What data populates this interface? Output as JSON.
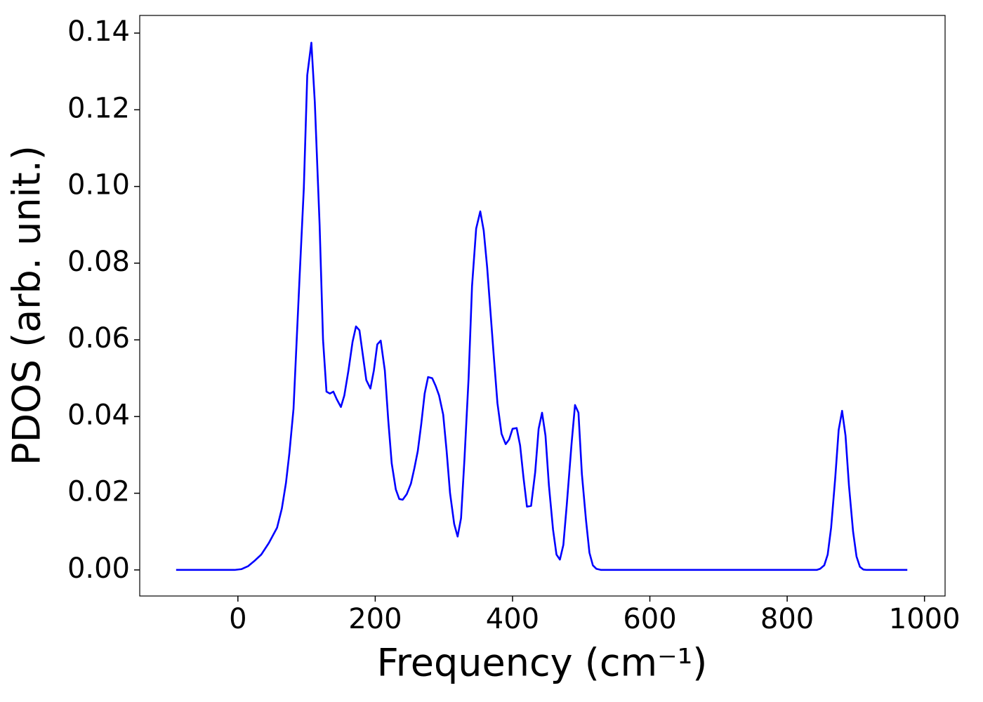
{
  "chart_data": {
    "type": "line",
    "xlabel": "Frequency (cm⁻¹)",
    "ylabel": "PDOS (arb. unit.)",
    "xlim": [
      -143,
      1030
    ],
    "ylim": [
      -0.0068,
      0.1446
    ],
    "xticks": [
      0,
      200,
      400,
      600,
      800,
      1000
    ],
    "yticks": [
      {
        "value": 0,
        "label": "0.00"
      },
      {
        "value": 0.02,
        "label": "0.02"
      },
      {
        "value": 0.04,
        "label": "0.04"
      },
      {
        "value": 0.06,
        "label": "0.06"
      },
      {
        "value": 0.08,
        "label": "0.08"
      },
      {
        "value": 0.1,
        "label": "0.10"
      },
      {
        "value": 0.12,
        "label": "0.12"
      },
      {
        "value": 0.14,
        "label": "0.14"
      }
    ],
    "grid": false,
    "x": [
      -90,
      -20,
      -5,
      5,
      15,
      25,
      34,
      45,
      57,
      64,
      70,
      75,
      81,
      85,
      90,
      96,
      101,
      107,
      112,
      119,
      124,
      129,
      134,
      139,
      144,
      150,
      155,
      161,
      167,
      172,
      177,
      182,
      187,
      193,
      198,
      203,
      208,
      214,
      219,
      224,
      230,
      235,
      240,
      246,
      252,
      257,
      262,
      267,
      272,
      277,
      283,
      288,
      293,
      299,
      304,
      309,
      315,
      320,
      325,
      330,
      336,
      341,
      347,
      353,
      358,
      363,
      368,
      373,
      378,
      384,
      390,
      395,
      400,
      406,
      411,
      416,
      421,
      427,
      433,
      438,
      443,
      448,
      453,
      459,
      464,
      469,
      474,
      479,
      486,
      491,
      496,
      501,
      507,
      512,
      517,
      522,
      529,
      843,
      848,
      854,
      859,
      864,
      870,
      875,
      880,
      885,
      890,
      896,
      901,
      906,
      911,
      916,
      975
    ],
    "series": [
      {
        "name": "PDOS",
        "color": "#0000ff",
        "values": [
          0,
          0,
          0,
          0.0002,
          0.001,
          0.0025,
          0.004,
          0.007,
          0.011,
          0.016,
          0.0227,
          0.0305,
          0.042,
          0.0576,
          0.077,
          0.0995,
          0.129,
          0.1375,
          0.122,
          0.09,
          0.06,
          0.0465,
          0.046,
          0.0465,
          0.0445,
          0.0425,
          0.0455,
          0.052,
          0.0595,
          0.0635,
          0.0625,
          0.056,
          0.0495,
          0.0473,
          0.052,
          0.0588,
          0.0598,
          0.052,
          0.039,
          0.0278,
          0.021,
          0.0185,
          0.0183,
          0.0198,
          0.0225,
          0.0265,
          0.031,
          0.038,
          0.046,
          0.0503,
          0.05,
          0.048,
          0.0455,
          0.0405,
          0.031,
          0.02,
          0.012,
          0.0087,
          0.0135,
          0.029,
          0.05,
          0.074,
          0.089,
          0.0935,
          0.0885,
          0.079,
          0.067,
          0.055,
          0.0435,
          0.0355,
          0.0328,
          0.034,
          0.0368,
          0.037,
          0.0325,
          0.024,
          0.0165,
          0.0167,
          0.0255,
          0.0368,
          0.041,
          0.035,
          0.022,
          0.0105,
          0.004,
          0.0027,
          0.0065,
          0.017,
          0.033,
          0.043,
          0.041,
          0.025,
          0.013,
          0.0045,
          0.0012,
          0.0003,
          0,
          0,
          0.0003,
          0.0012,
          0.004,
          0.011,
          0.024,
          0.0365,
          0.0415,
          0.035,
          0.022,
          0.01,
          0.0035,
          0.0008,
          0.0001,
          0,
          0
        ]
      }
    ]
  }
}
